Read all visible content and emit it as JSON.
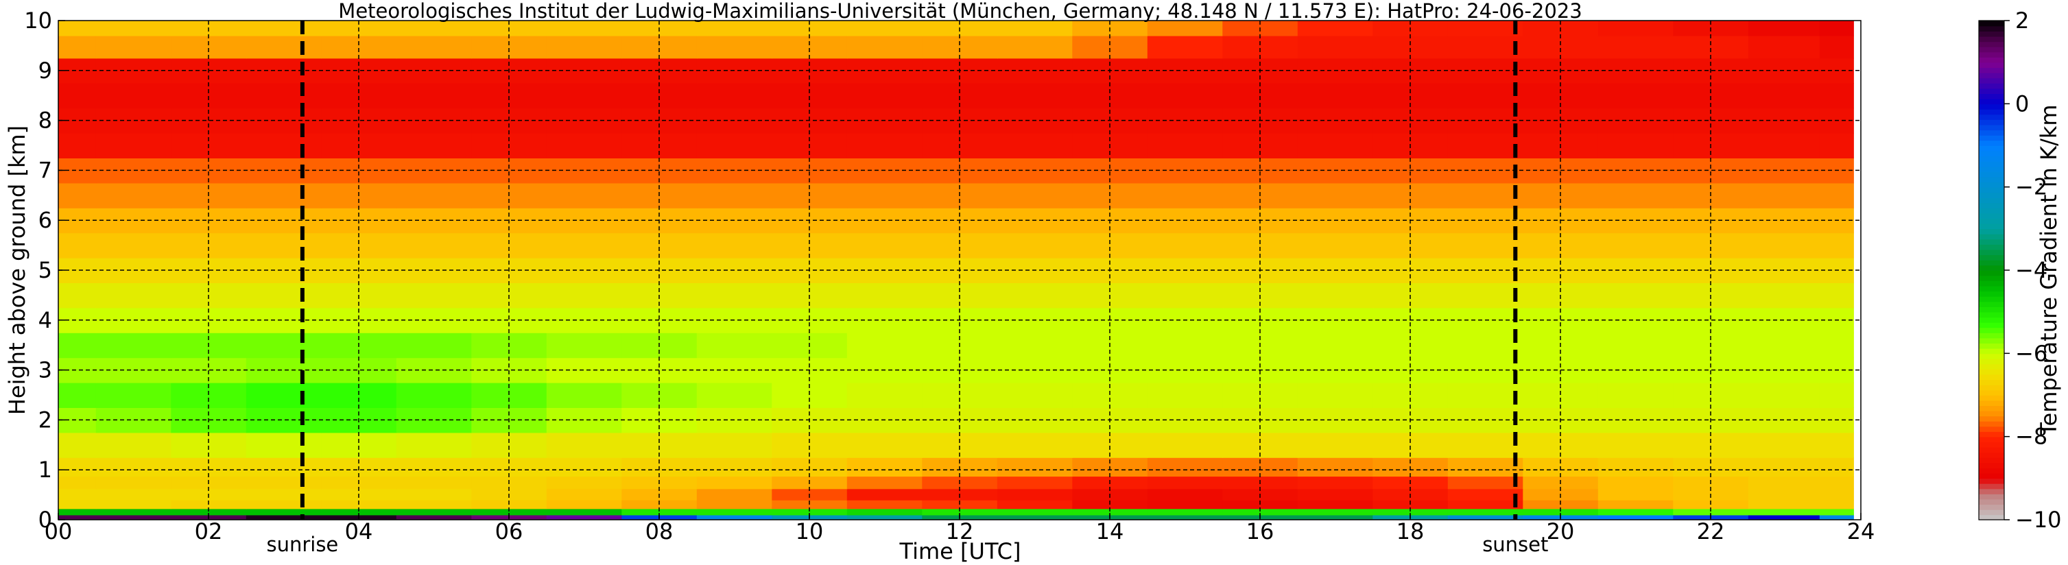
{
  "chart_data": {
    "type": "heatmap",
    "title": "Meteorologisches Institut der Ludwig-Maximilians-Universität (München, Germany; 48.148 N / 11.573 E):    HatPro: 24-06-2023",
    "xlabel": "Time [UTC]",
    "ylabel": "Height above ground [km]",
    "xlim": [
      0,
      24
    ],
    "ylim": [
      0,
      10
    ],
    "x_ticks": [
      0,
      2,
      4,
      6,
      8,
      10,
      12,
      14,
      16,
      18,
      20,
      22,
      24
    ],
    "x_tick_labels": [
      "00",
      "02",
      "04",
      "06",
      "08",
      "10",
      "12",
      "14",
      "16",
      "18",
      "20",
      "22",
      "24"
    ],
    "y_ticks": [
      0,
      1,
      2,
      3,
      4,
      5,
      6,
      7,
      8,
      9,
      10
    ],
    "y_tick_labels": [
      "0",
      "1",
      "2",
      "3",
      "4",
      "5",
      "6",
      "7",
      "8",
      "9",
      "10"
    ],
    "grid": true,
    "colorbar": {
      "label": "Temperature Gradient in K/km",
      "min": -10,
      "max": 2,
      "ticks": [
        2,
        0,
        -2,
        -4,
        -6,
        -8,
        -10
      ],
      "tick_labels": [
        "2",
        "0",
        "−2",
        "−4",
        "−6",
        "−8",
        "−10"
      ],
      "colors": [
        {
          "value": -10,
          "color": "#c8c8c8"
        },
        {
          "value": -9.4,
          "color": "#c08080"
        },
        {
          "value": -9,
          "color": "#e80000"
        },
        {
          "value": -8,
          "color": "#ff2200"
        },
        {
          "value": -7.5,
          "color": "#ff8c00"
        },
        {
          "value": -7,
          "color": "#ffc000"
        },
        {
          "value": -6.5,
          "color": "#f0e000"
        },
        {
          "value": -6,
          "color": "#ccff00"
        },
        {
          "value": -5.3,
          "color": "#30ff00"
        },
        {
          "value": -4.5,
          "color": "#00c000"
        },
        {
          "value": -4,
          "color": "#009600"
        },
        {
          "value": -3,
          "color": "#00a0a0"
        },
        {
          "value": -2,
          "color": "#0090d0"
        },
        {
          "value": -1,
          "color": "#0080ff"
        },
        {
          "value": 0,
          "color": "#0000d0"
        },
        {
          "value": 0.5,
          "color": "#4000b0"
        },
        {
          "value": 1,
          "color": "#800090"
        },
        {
          "value": 1.5,
          "color": "#500050"
        },
        {
          "value": 2,
          "color": "#000000"
        }
      ]
    },
    "events": [
      {
        "label": "sunrise",
        "time": 3.25
      },
      {
        "label": "sunset",
        "time": 19.4
      }
    ],
    "times": [
      0,
      1,
      2,
      3,
      4,
      5,
      6,
      7,
      8,
      9,
      10,
      11,
      12,
      13,
      14,
      15,
      16,
      17,
      18,
      19,
      20,
      21,
      22,
      23,
      23.9
    ],
    "heights": [
      0.05,
      0.15,
      0.3,
      0.5,
      0.75,
      1.0,
      1.5,
      2.0,
      2.5,
      3.0,
      3.5,
      4.0,
      4.5,
      5.0,
      5.5,
      6.0,
      6.5,
      7.0,
      7.5,
      8.0,
      8.5,
      9.0,
      9.5,
      9.9
    ],
    "values": [
      [
        1.5,
        1.5,
        1.5,
        1.8,
        1.8,
        1.5,
        1.2,
        0.8,
        -0.5,
        -1.5,
        -2.5,
        -3.0,
        -3.5,
        -3.5,
        -3.5,
        -3.5,
        -3.5,
        -3.5,
        -3.0,
        -2.0,
        -1.5,
        -1.0,
        -0.5,
        0.0,
        -1.5
      ],
      [
        -4.5,
        -4.5,
        -4.5,
        -4.5,
        -4.5,
        -4.5,
        -4.5,
        -4.5,
        -5.0,
        -5.0,
        -5.0,
        -4.8,
        -5.0,
        -5.0,
        -5.0,
        -5.0,
        -5.0,
        -5.0,
        -5.0,
        -5.0,
        -5.0,
        -5.2,
        -5.5,
        -5.5,
        -5.5
      ],
      [
        -6.6,
        -6.6,
        -6.7,
        -6.7,
        -6.7,
        -6.7,
        -6.8,
        -7.0,
        -7.2,
        -7.4,
        -7.6,
        -7.8,
        -7.9,
        -8.2,
        -8.7,
        -8.8,
        -8.8,
        -8.7,
        -8.5,
        -8.2,
        -7.5,
        -7.2,
        -7.0,
        -6.8,
        -6.8
      ],
      [
        -6.6,
        -6.6,
        -6.6,
        -6.6,
        -6.6,
        -6.6,
        -6.7,
        -6.9,
        -7.1,
        -7.4,
        -7.8,
        -8.3,
        -8.3,
        -8.4,
        -8.6,
        -8.7,
        -8.6,
        -8.5,
        -8.3,
        -8.0,
        -7.3,
        -7.0,
        -6.9,
        -6.8,
        -6.8
      ],
      [
        -6.7,
        -6.7,
        -6.7,
        -6.7,
        -6.7,
        -6.7,
        -6.7,
        -6.8,
        -6.9,
        -7.0,
        -7.2,
        -7.6,
        -7.8,
        -7.9,
        -8.2,
        -8.3,
        -8.3,
        -8.2,
        -8.0,
        -7.8,
        -7.2,
        -7.0,
        -6.9,
        -6.8,
        -6.8
      ],
      [
        -6.6,
        -6.6,
        -6.6,
        -6.6,
        -6.6,
        -6.6,
        -6.6,
        -6.6,
        -6.7,
        -6.7,
        -6.8,
        -7.0,
        -7.2,
        -7.3,
        -7.5,
        -7.6,
        -7.6,
        -7.5,
        -7.4,
        -7.2,
        -6.9,
        -6.8,
        -6.7,
        -6.7,
        -6.7
      ],
      [
        -6.3,
        -6.3,
        -6.2,
        -6.1,
        -6.1,
        -6.2,
        -6.3,
        -6.4,
        -6.4,
        -6.4,
        -6.5,
        -6.5,
        -6.5,
        -6.5,
        -6.5,
        -6.5,
        -6.5,
        -6.5,
        -6.5,
        -6.5,
        -6.5,
        -6.5,
        -6.5,
        -6.5,
        -6.5
      ],
      [
        -5.8,
        -5.7,
        -5.5,
        -5.4,
        -5.4,
        -5.5,
        -5.7,
        -5.9,
        -6.0,
        -6.1,
        -6.2,
        -6.2,
        -6.2,
        -6.2,
        -6.2,
        -6.2,
        -6.2,
        -6.2,
        -6.2,
        -6.2,
        -6.2,
        -6.2,
        -6.2,
        -6.2,
        -6.2
      ],
      [
        -5.5,
        -5.5,
        -5.4,
        -5.3,
        -5.3,
        -5.4,
        -5.5,
        -5.7,
        -5.8,
        -5.9,
        -6.0,
        -6.1,
        -6.1,
        -6.1,
        -6.1,
        -6.1,
        -6.1,
        -6.1,
        -6.1,
        -6.1,
        -6.1,
        -6.1,
        -6.1,
        -6.1,
        -6.1
      ],
      [
        -5.8,
        -5.8,
        -5.8,
        -5.7,
        -5.7,
        -5.8,
        -5.9,
        -6.0,
        -6.0,
        -6.0,
        -6.0,
        -6.0,
        -6.0,
        -6.0,
        -6.0,
        -6.0,
        -6.0,
        -6.0,
        -6.0,
        -6.0,
        -6.0,
        -6.0,
        -6.0,
        -6.0,
        -6.0
      ],
      [
        -5.6,
        -5.6,
        -5.6,
        -5.6,
        -5.6,
        -5.6,
        -5.7,
        -5.8,
        -5.8,
        -5.9,
        -5.9,
        -6.0,
        -6.0,
        -6.0,
        -6.0,
        -6.0,
        -6.0,
        -6.0,
        -6.0,
        -6.0,
        -6.0,
        -6.0,
        -6.0,
        -6.0,
        -6.0
      ],
      [
        -6.0,
        -6.0,
        -6.0,
        -6.0,
        -6.0,
        -6.0,
        -6.0,
        -6.0,
        -6.0,
        -6.0,
        -6.0,
        -6.0,
        -6.0,
        -6.0,
        -6.0,
        -6.0,
        -6.0,
        -6.0,
        -6.0,
        -6.0,
        -6.0,
        -6.0,
        -6.0,
        -6.0,
        -6.0
      ],
      [
        -6.3,
        -6.3,
        -6.3,
        -6.3,
        -6.3,
        -6.3,
        -6.3,
        -6.3,
        -6.3,
        -6.3,
        -6.3,
        -6.3,
        -6.3,
        -6.3,
        -6.3,
        -6.3,
        -6.3,
        -6.3,
        -6.3,
        -6.3,
        -6.3,
        -6.3,
        -6.3,
        -6.3,
        -6.3
      ],
      [
        -6.6,
        -6.6,
        -6.6,
        -6.6,
        -6.6,
        -6.6,
        -6.6,
        -6.6,
        -6.6,
        -6.6,
        -6.6,
        -6.6,
        -6.6,
        -6.6,
        -6.6,
        -6.6,
        -6.6,
        -6.6,
        -6.6,
        -6.6,
        -6.6,
        -6.6,
        -6.6,
        -6.6,
        -6.6
      ],
      [
        -6.9,
        -6.9,
        -6.9,
        -6.9,
        -6.9,
        -6.9,
        -6.9,
        -6.9,
        -6.9,
        -6.9,
        -6.9,
        -6.9,
        -6.9,
        -6.9,
        -6.9,
        -6.9,
        -6.9,
        -6.9,
        -6.9,
        -6.9,
        -6.9,
        -6.9,
        -6.9,
        -6.9,
        -6.9
      ],
      [
        -7.1,
        -7.1,
        -7.1,
        -7.1,
        -7.1,
        -7.1,
        -7.1,
        -7.1,
        -7.1,
        -7.1,
        -7.1,
        -7.1,
        -7.1,
        -7.1,
        -7.1,
        -7.1,
        -7.1,
        -7.1,
        -7.1,
        -7.1,
        -7.1,
        -7.1,
        -7.1,
        -7.1,
        -7.1
      ],
      [
        -7.5,
        -7.5,
        -7.5,
        -7.5,
        -7.5,
        -7.5,
        -7.5,
        -7.5,
        -7.5,
        -7.5,
        -7.5,
        -7.5,
        -7.5,
        -7.5,
        -7.5,
        -7.5,
        -7.5,
        -7.5,
        -7.5,
        -7.5,
        -7.5,
        -7.5,
        -7.5,
        -7.5,
        -7.5
      ],
      [
        -7.7,
        -7.7,
        -7.7,
        -7.7,
        -7.7,
        -7.7,
        -7.7,
        -7.7,
        -7.7,
        -7.7,
        -7.7,
        -7.7,
        -7.7,
        -7.7,
        -7.7,
        -7.7,
        -7.7,
        -7.7,
        -7.7,
        -7.7,
        -7.7,
        -7.7,
        -7.7,
        -7.7,
        -7.7
      ],
      [
        -8.5,
        -8.5,
        -8.5,
        -8.5,
        -8.5,
        -8.5,
        -8.5,
        -8.5,
        -8.5,
        -8.5,
        -8.5,
        -8.5,
        -8.5,
        -8.5,
        -8.5,
        -8.5,
        -8.5,
        -8.5,
        -8.5,
        -8.5,
        -8.5,
        -8.5,
        -8.5,
        -8.5,
        -8.5
      ],
      [
        -8.6,
        -8.6,
        -8.6,
        -8.6,
        -8.6,
        -8.6,
        -8.6,
        -8.6,
        -8.6,
        -8.6,
        -8.6,
        -8.6,
        -8.6,
        -8.6,
        -8.6,
        -8.6,
        -8.6,
        -8.6,
        -8.6,
        -8.6,
        -8.6,
        -8.6,
        -8.6,
        -8.6,
        -8.6
      ],
      [
        -8.7,
        -8.7,
        -8.7,
        -8.7,
        -8.7,
        -8.7,
        -8.7,
        -8.7,
        -8.7,
        -8.7,
        -8.7,
        -8.7,
        -8.7,
        -8.7,
        -8.7,
        -8.7,
        -8.7,
        -8.7,
        -8.7,
        -8.7,
        -8.7,
        -8.7,
        -8.7,
        -8.7,
        -8.7
      ],
      [
        -8.6,
        -8.6,
        -8.6,
        -8.6,
        -8.6,
        -8.6,
        -8.6,
        -8.6,
        -8.6,
        -8.6,
        -8.6,
        -8.6,
        -8.6,
        -8.6,
        -8.6,
        -8.6,
        -8.6,
        -8.6,
        -8.6,
        -8.6,
        -8.6,
        -8.6,
        -8.6,
        -8.6,
        -8.6
      ],
      [
        -7.3,
        -7.3,
        -7.3,
        -7.3,
        -7.3,
        -7.3,
        -7.3,
        -7.3,
        -7.3,
        -7.3,
        -7.3,
        -7.3,
        -7.3,
        -7.3,
        -7.6,
        -8.0,
        -8.2,
        -8.3,
        -8.3,
        -8.3,
        -8.3,
        -8.3,
        -8.3,
        -8.5,
        -8.7
      ],
      [
        -6.9,
        -6.9,
        -6.9,
        -6.9,
        -6.9,
        -6.9,
        -6.9,
        -6.9,
        -6.9,
        -6.9,
        -6.9,
        -6.9,
        -6.9,
        -6.9,
        -7.2,
        -7.5,
        -7.8,
        -8.0,
        -8.2,
        -8.2,
        -8.3,
        -8.4,
        -8.6,
        -8.8,
        -8.9
      ]
    ]
  }
}
